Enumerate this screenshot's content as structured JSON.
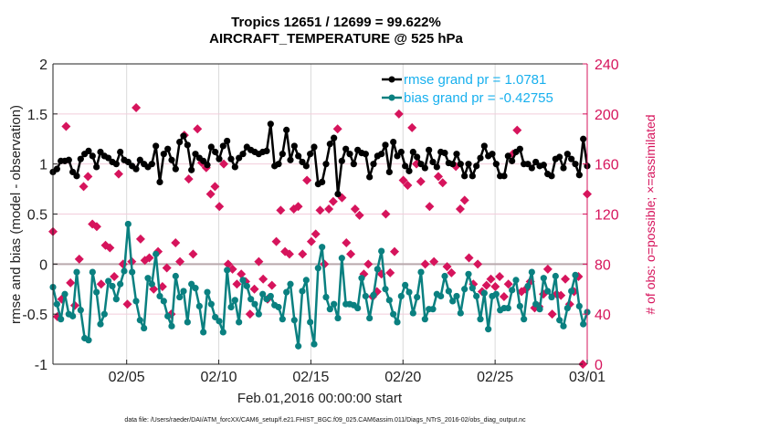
{
  "chart_data": {
    "type": "line",
    "title": [
      "Tropics 12651 / 12699 = 99.622%",
      "AIRCRAFT_TEMPERATURE @ 525 hPa"
    ],
    "xlabel": "Feb.01,2016 00:00:00 start",
    "ylabel": "rmse and bias (model - observation)",
    "y2label": "# of obs: o=possible; ×=assimilated",
    "footnote": "data file: /Users/raeder/DAI/ATM_forcXX/CAM6_setup/f.e21.FHIST_BGC.f09_025.CAM6assim.011/Diags_NTrS_2016-02/obs_diag_output.nc",
    "xlim_days": [
      0,
      29
    ],
    "xticks": [
      {
        "day": 4,
        "label": "02/05"
      },
      {
        "day": 9,
        "label": "02/10"
      },
      {
        "day": 14,
        "label": "02/15"
      },
      {
        "day": 19,
        "label": "02/20"
      },
      {
        "day": 24,
        "label": "02/25"
      },
      {
        "day": 29,
        "label": "03/01"
      }
    ],
    "ylim": [
      -1,
      2
    ],
    "yticks": [
      "2",
      "1.5",
      "1",
      "0.5",
      "0",
      "-0.5",
      "-1"
    ],
    "y2lim": [
      0,
      240
    ],
    "y2ticks": [
      "240",
      "200",
      "160",
      "120",
      "80",
      "40",
      "0"
    ],
    "grid": true,
    "legend_position": "top-right",
    "colors": {
      "rmse": "#000000",
      "bias": "#0a8080",
      "obs": "#d6145c",
      "legend_text": "#18b0ee",
      "zero_line": "#b9a9ad"
    },
    "series": [
      {
        "name": "rmse grand pr = 1.0781",
        "axis": "left",
        "values": [
          0.92,
          0.95,
          1.03,
          1.03,
          1.04,
          0.92,
          0.88,
          1.05,
          1.1,
          1.13,
          1.08,
          0.97,
          1.12,
          1.08,
          1.06,
          1.02,
          1.0,
          1.12,
          1.04,
          1.02,
          0.98,
          0.95,
          1.04,
          1.0,
          0.97,
          1.0,
          1.18,
          0.82,
          1.1,
          1.15,
          1.04,
          0.95,
          1.22,
          1.28,
          1.19,
          0.94,
          1.1,
          1.06,
          1.03,
          0.99,
          1.17,
          1.12,
          1.05,
          1.18,
          1.23,
          1.05,
          0.97,
          1.06,
          1.1,
          1.17,
          1.14,
          1.12,
          1.1,
          1.12,
          1.13,
          1.4,
          0.98,
          1.0,
          1.1,
          1.34,
          1.04,
          1.18,
          1.08,
          1.02,
          0.98,
          1.1,
          1.17,
          0.8,
          0.82,
          1.0,
          1.2,
          1.26,
          0.7,
          1.03,
          1.15,
          1.1,
          1.0,
          1.14,
          1.11,
          1.1,
          0.87,
          1.0,
          1.08,
          1.1,
          1.19,
          0.92,
          1.22,
          1.08,
          1.12,
          0.98,
          0.93,
          1.12,
          1.07,
          1.0,
          0.96,
          1.14,
          1.02,
          0.97,
          1.12,
          1.11,
          1.01,
          1.0,
          1.1,
          1.0,
          0.88,
          1.0,
          0.88,
          0.98,
          1.06,
          1.18,
          1.08,
          1.1,
          1.0,
          0.88,
          0.88,
          1.08,
          1.03,
          1.12,
          1.15,
          1.0,
          1.0,
          0.96,
          1.02,
          0.98,
          0.99,
          0.9,
          0.88,
          1.05,
          1.07,
          0.96,
          1.1,
          1.05,
          1.0,
          0.89,
          1.25,
          0.98
        ]
      },
      {
        "name": "bias grand pr = -0.42755",
        "axis": "left",
        "values": [
          -0.23,
          -0.4,
          -0.55,
          -0.3,
          -0.5,
          -0.52,
          -0.08,
          -0.46,
          -0.74,
          -0.76,
          -0.08,
          -0.28,
          -0.6,
          -0.5,
          -0.17,
          -0.22,
          -0.35,
          -0.2,
          -0.07,
          0.4,
          -0.08,
          -0.37,
          -0.56,
          -0.64,
          -0.14,
          -0.2,
          0.1,
          -0.32,
          -0.37,
          -0.52,
          -0.62,
          -0.12,
          -0.33,
          -0.27,
          -0.58,
          -0.2,
          -0.24,
          -0.42,
          -0.68,
          -0.28,
          -0.4,
          -0.53,
          -0.57,
          -0.68,
          -0.06,
          -0.43,
          -0.36,
          -0.58,
          -0.16,
          -0.22,
          -0.35,
          -0.4,
          -0.5,
          -0.3,
          -0.35,
          -0.32,
          -0.41,
          -0.43,
          -0.55,
          -0.28,
          -0.2,
          -0.56,
          -0.82,
          -0.27,
          -0.16,
          -0.58,
          -0.8,
          -0.04,
          0.17,
          -0.33,
          -0.45,
          -0.4,
          -0.54,
          0.06,
          -0.4,
          -0.4,
          -0.41,
          -0.44,
          -0.14,
          -0.32,
          -0.54,
          -0.31,
          -0.05,
          0.13,
          -0.25,
          -0.36,
          -0.5,
          -0.58,
          -0.32,
          -0.21,
          -0.28,
          -0.49,
          -0.33,
          -0.08,
          -0.55,
          -0.45,
          -0.45,
          -0.3,
          -0.32,
          -0.12,
          -0.27,
          -0.37,
          -0.32,
          -0.49,
          -0.25,
          -0.1,
          -0.24,
          -0.32,
          -0.55,
          -0.29,
          -0.65,
          -0.32,
          -0.3,
          -0.46,
          -0.44,
          -0.44,
          -0.26,
          -0.16,
          -0.42,
          -0.55,
          -0.22,
          -0.08,
          -0.4,
          -0.45,
          -0.14,
          -0.27,
          -0.33,
          -0.12,
          -0.56,
          -0.62,
          -0.44,
          -0.27,
          -0.11,
          -0.42,
          -0.6,
          -0.48
        ]
      },
      {
        "name": "# of obs assimilated",
        "axis": "right",
        "marker": "x",
        "values": [
          106,
          38,
          52,
          190,
          65,
          47,
          84,
          142,
          150,
          112,
          110,
          64,
          95,
          93,
          70,
          152,
          80,
          48,
          82,
          205,
          100,
          83,
          85,
          60,
          90,
          62,
          77,
          40,
          97,
          82,
          183,
          148,
          88,
          188,
          161,
          157,
          136,
          142,
          126,
          160,
          80,
          76,
          64,
          72,
          66,
          40,
          60,
          82,
          68,
          52,
          63,
          98,
          123,
          90,
          88,
          124,
          126,
          88,
          147,
          98,
          104,
          123,
          80,
          124,
          130,
          188,
          133,
          97,
          88,
          124,
          119,
          72,
          80,
          54,
          58,
          72,
          120,
          73,
          90,
          200,
          147,
          143,
          189,
          160,
          146,
          80,
          126,
          82,
          150,
          145,
          78,
          73,
          158,
          124,
          131,
          85,
          64,
          80,
          58,
          63,
          68,
          62,
          70,
          54,
          64,
          168,
          187,
          58,
          60,
          66,
          45,
          46,
          56,
          76,
          40,
          56,
          55,
          68,
          48,
          58,
          70,
          0,
          136
        ]
      }
    ]
  }
}
